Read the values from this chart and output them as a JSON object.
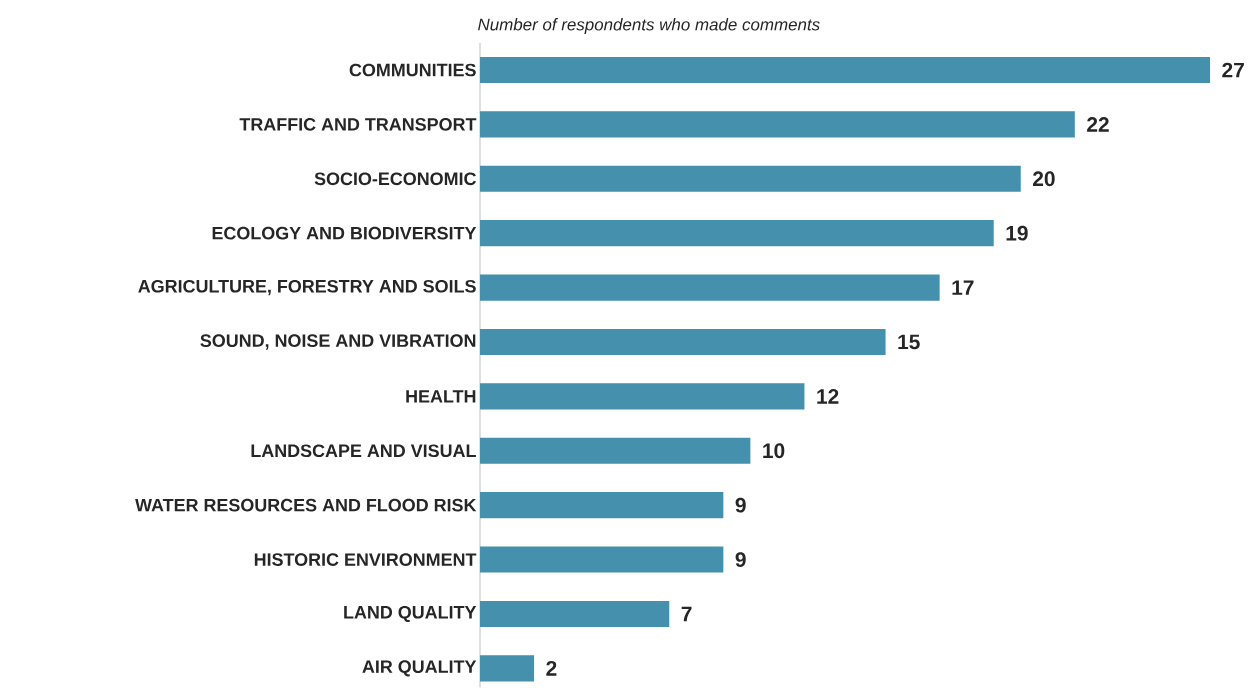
{
  "chart_data": {
    "type": "bar",
    "orientation": "horizontal",
    "title": "Number of respondents who made comments",
    "categories": [
      "COMMUNITIES",
      "TRAFFIC AND TRANSPORT",
      "SOCIO-ECONOMIC",
      "ECOLOGY AND BIODIVERSITY",
      "AGRICULTURE, FORESTRY AND SOILS",
      "SOUND, NOISE AND VIBRATION",
      "HEALTH",
      "LANDSCAPE AND VISUAL",
      "WATER RESOURCES AND FLOOD RISK",
      "HISTORIC ENVIRONMENT",
      "LAND QUALITY",
      "AIR QUALITY"
    ],
    "values": [
      27,
      22,
      20,
      19,
      17,
      15,
      12,
      10,
      9,
      9,
      7,
      2
    ],
    "color": "#4590ad",
    "data_labels": true
  }
}
